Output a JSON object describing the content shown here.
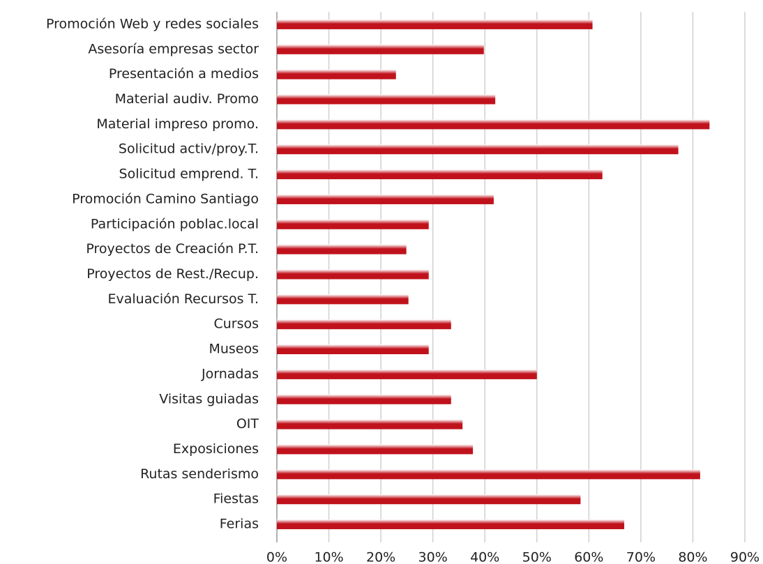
{
  "chart_data": {
    "type": "barh",
    "categories": [
      "Promoción Web y redes sociales",
      "Asesoría empresas sector",
      "Presentación a medios",
      "Material audiv. Promo",
      "Material impreso promo.",
      "Solicitud activ/proy.T.",
      "Solicitud emprend. T.",
      "Promoción Camino Santiago",
      "Participación poblac.local",
      "Proyectos de Creación P.T.",
      "Proyectos de Rest./Recup.",
      "Evaluación Recursos T.",
      "Cursos",
      "Museos",
      "Jornadas",
      "Visitas guiadas",
      "OIT",
      "Exposiciones",
      "Rutas senderismo",
      "Fiestas",
      "Ferias"
    ],
    "values": [
      60.7,
      39.8,
      22.9,
      42.0,
      83.2,
      77.2,
      62.6,
      41.7,
      29.2,
      24.9,
      29.2,
      25.3,
      33.5,
      29.2,
      50.0,
      33.5,
      35.7,
      37.7,
      81.4,
      58.4,
      66.8
    ],
    "color": "#c0121c",
    "xlim": [
      0,
      90
    ],
    "xticks": [
      {
        "value": 0,
        "label": "0%"
      },
      {
        "value": 10,
        "label": "10%"
      },
      {
        "value": 20,
        "label": "20%"
      },
      {
        "value": 30,
        "label": "30%"
      },
      {
        "value": 40,
        "label": "40%"
      },
      {
        "value": 50,
        "label": "50%"
      },
      {
        "value": 60,
        "label": "60%"
      },
      {
        "value": 70,
        "label": "70%"
      },
      {
        "value": 80,
        "label": "80%"
      },
      {
        "value": 90,
        "label": "90%"
      }
    ],
    "grid": true
  }
}
